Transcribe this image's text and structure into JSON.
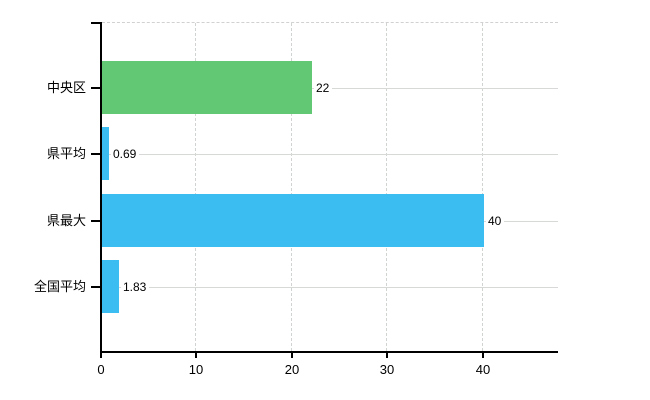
{
  "chart_data": {
    "type": "bar",
    "orientation": "horizontal",
    "title": "",
    "xlabel": "",
    "ylabel": "",
    "legend": "none",
    "categories": [
      "中央区",
      "県平均",
      "県最大",
      "全国平均"
    ],
    "values": [
      22,
      0.69,
      40,
      1.83
    ],
    "value_labels": [
      "22",
      "0.69",
      "40",
      "1.83"
    ],
    "bar_colors": [
      "#63c873",
      "#3bbdf2",
      "#3bbdf2",
      "#3bbdf2"
    ],
    "x_tick_values": [
      0,
      10,
      20,
      30,
      40
    ],
    "x_tick_labels": [
      "0",
      "10",
      "20",
      "30",
      "40"
    ],
    "xlim": [
      0,
      48
    ],
    "grid": {
      "vertical": "dashed at each x tick",
      "horizontal": "solid through each category center",
      "top_border": "dashed"
    },
    "colors": {
      "background": "#ffffff",
      "axis": "#000000",
      "grid": "#d6d9d6",
      "text": "#000000"
    }
  }
}
